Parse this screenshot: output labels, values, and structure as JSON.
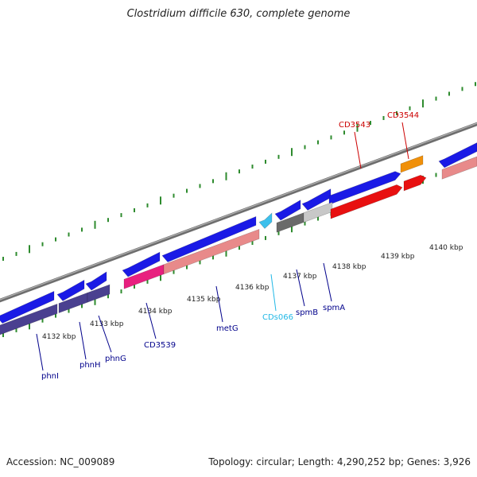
{
  "title": "Clostridium difficile 630, complete genome",
  "footer": {
    "accession": "Accession: NC_009089",
    "summary": "Topology: circular; Length: 4,290,252 bp; Genes: 3,926"
  },
  "colors": {
    "backbone": "#8a8a8a",
    "tick": "#2e8b2e",
    "gene_arrow": "#1a1ae6",
    "label_blue": "#00008b",
    "label_red": "#cc0000",
    "label_cyan": "#22b8e6",
    "feature_purple": "#4a4090",
    "feature_pink": "#e8207f",
    "feature_salmon": "#e88a8a",
    "feature_red": "#e81010",
    "feature_orange": "#f0900a",
    "feature_darkgray": "#6a6a6a",
    "feature_lightgray": "#c8c8c8",
    "feature_cyan": "#3cc0ec"
  },
  "kbp_labels": [
    "4132 kbp",
    "4133 kbp",
    "4134 kbp",
    "4135 kbp",
    "4136 kbp",
    "4137 kbp",
    "4138 kbp",
    "4139 kbp",
    "4140 kbp"
  ],
  "gene_labels": [
    {
      "text": "phnI",
      "color": "label_blue"
    },
    {
      "text": "phnH",
      "color": "label_blue"
    },
    {
      "text": "phnG",
      "color": "label_blue"
    },
    {
      "text": "CD3539",
      "color": "label_blue"
    },
    {
      "text": "metG",
      "color": "label_blue"
    },
    {
      "text": "CDs066",
      "color": "label_cyan"
    },
    {
      "text": "spmB",
      "color": "label_blue"
    },
    {
      "text": "spmA",
      "color": "label_blue"
    },
    {
      "text": "CD3543",
      "color": "label_red"
    },
    {
      "text": "CD3544",
      "color": "label_red"
    }
  ]
}
